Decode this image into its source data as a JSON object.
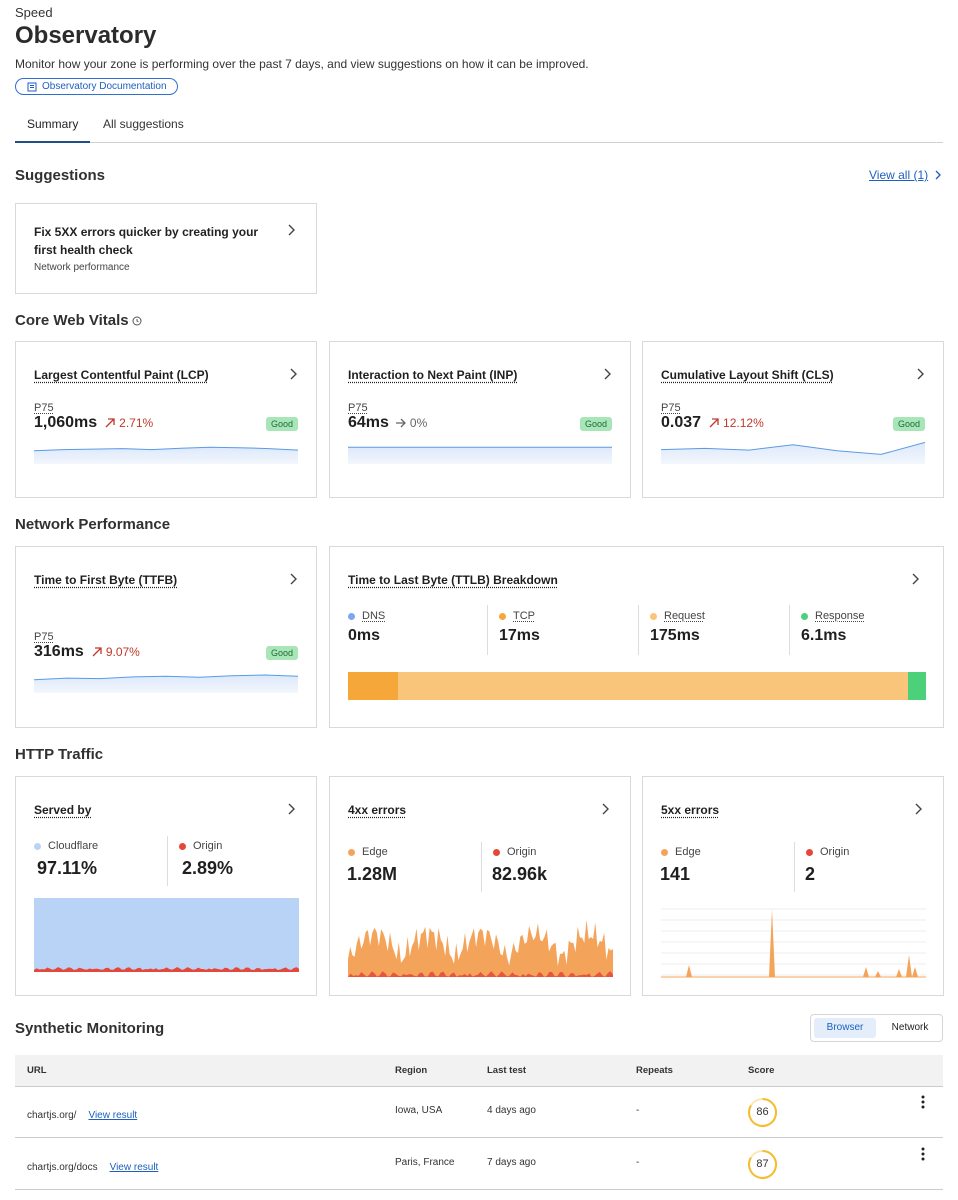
{
  "header": {
    "breadcrumb": "Speed",
    "title": "Observatory",
    "description": "Monitor how your zone is performing over the past 7 days, and view suggestions on how it can be improved.",
    "doc_link": "Observatory Documentation"
  },
  "tabs": [
    "Summary",
    "All suggestions"
  ],
  "suggestions": {
    "title": "Suggestions",
    "view_all": "View all (1)",
    "items": [
      {
        "title": "Fix 5XX errors quicker by creating your first health check",
        "category": "Network performance"
      }
    ]
  },
  "core_web_vitals": {
    "title": "Core Web Vitals",
    "cards": [
      {
        "title": "Largest Contentful Paint (LCP)",
        "metric": "P75",
        "value": "1,060ms",
        "change": "2.71%",
        "trend": "up",
        "status": "Good"
      },
      {
        "title": "Interaction to Next Paint (INP)",
        "metric": "P75",
        "value": "64ms",
        "change": "0%",
        "trend": "flat",
        "status": "Good"
      },
      {
        "title": "Cumulative Layout Shift (CLS)",
        "metric": "P75",
        "value": "0.037",
        "change": "12.12%",
        "trend": "up",
        "status": "Good"
      }
    ]
  },
  "network_performance": {
    "title": "Network Performance",
    "ttfb": {
      "title": "Time to First Byte (TTFB)",
      "metric": "P75",
      "value": "316ms",
      "change": "9.07%",
      "trend": "up",
      "status": "Good"
    },
    "ttlb": {
      "title": "Time to Last Byte (TTLB) Breakdown",
      "items": [
        {
          "name": "DNS",
          "value": "0ms",
          "color": "#7aa7f0"
        },
        {
          "name": "TCP",
          "value": "17ms",
          "color": "#f6a739"
        },
        {
          "name": "Request",
          "value": "175ms",
          "color": "#f9c57a"
        },
        {
          "name": "Response",
          "value": "6.1ms",
          "color": "#4cd07a"
        }
      ]
    }
  },
  "http_traffic": {
    "title": "HTTP Traffic",
    "cards": [
      {
        "title": "Served by",
        "items": [
          {
            "name": "Cloudflare",
            "value": "97.11%",
            "color": "#b8d3f6"
          },
          {
            "name": "Origin",
            "value": "2.89%",
            "color": "#e5483a"
          }
        ]
      },
      {
        "title": "4xx errors",
        "items": [
          {
            "name": "Edge",
            "value": "1.28M",
            "color": "#f4a45a"
          },
          {
            "name": "Origin",
            "value": "82.96k",
            "color": "#e5483a"
          }
        ]
      },
      {
        "title": "5xx errors",
        "items": [
          {
            "name": "Edge",
            "value": "141",
            "color": "#f4a45a"
          },
          {
            "name": "Origin",
            "value": "2",
            "color": "#e5483a"
          }
        ]
      }
    ]
  },
  "synthetic": {
    "title": "Synthetic Monitoring",
    "toggle": [
      "Browser",
      "Network"
    ],
    "columns": [
      "URL",
      "Region",
      "Last test",
      "Repeats",
      "Score"
    ],
    "rows": [
      {
        "url": "chartjs.org/",
        "link": "View result",
        "region": "Iowa, USA",
        "last_test": "4 days ago",
        "repeats": "-",
        "score": "86"
      },
      {
        "url": "chartjs.org/docs",
        "link": "View result",
        "region": "Paris, France",
        "last_test": "7 days ago",
        "repeats": "-",
        "score": "87"
      }
    ]
  }
}
